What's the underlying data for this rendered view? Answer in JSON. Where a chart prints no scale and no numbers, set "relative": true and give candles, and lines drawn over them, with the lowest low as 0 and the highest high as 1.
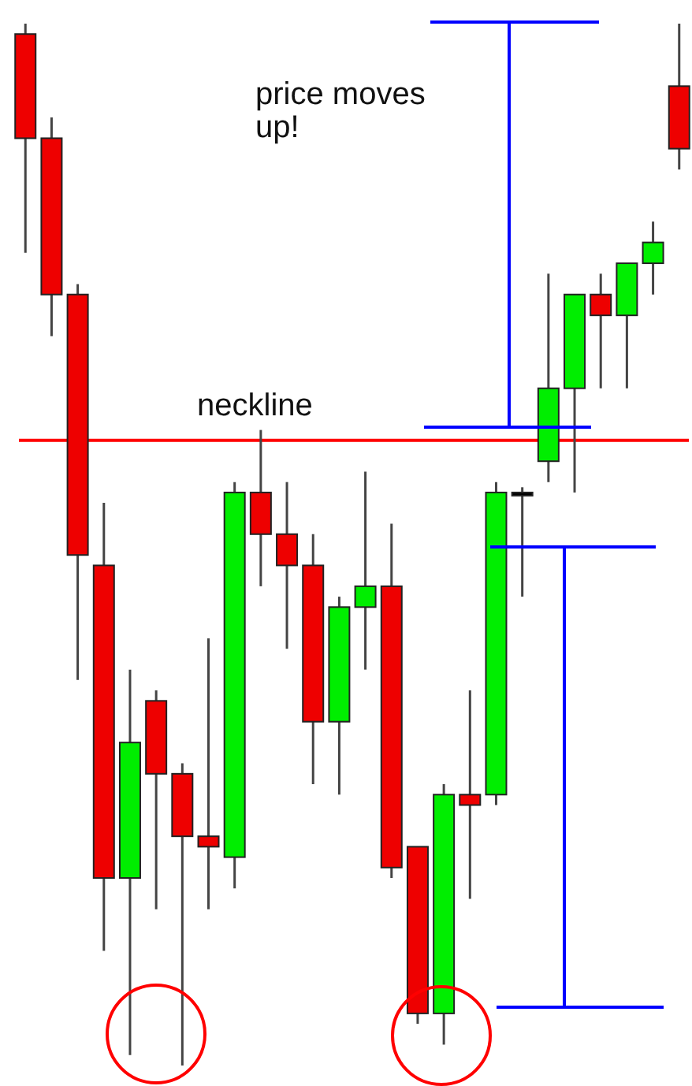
{
  "chart_data": {
    "type": "candlestick",
    "relative": true,
    "categories": [
      null,
      null,
      null,
      null,
      null,
      null,
      null,
      null,
      null,
      null,
      null,
      null,
      null,
      null,
      null,
      null,
      null,
      null,
      null,
      null,
      null,
      null,
      null,
      null,
      null,
      null
    ],
    "ohlc": [
      [
        0.99,
        1.0,
        0.78,
        0.89
      ],
      [
        0.89,
        0.91,
        0.7,
        0.74
      ],
      [
        0.74,
        0.75,
        0.37,
        0.49
      ],
      [
        0.48,
        0.54,
        0.11,
        0.18
      ],
      [
        0.18,
        0.38,
        0.01,
        0.31
      ],
      [
        0.35,
        0.36,
        0.15,
        0.28
      ],
      [
        0.28,
        0.29,
        0,
        0.22
      ],
      [
        0.22,
        0.41,
        0.15,
        0.21
      ],
      [
        0.2,
        0.56,
        0.17,
        0.55
      ],
      [
        0.55,
        0.61,
        0.46,
        0.51
      ],
      [
        0.51,
        0.56,
        0.4,
        0.48
      ],
      [
        0.48,
        0.51,
        0.27,
        0.33
      ],
      [
        0.33,
        0.45,
        0.26,
        0.44
      ],
      [
        0.44,
        0.57,
        0.38,
        0.46
      ],
      [
        0.46,
        0.52,
        0.18,
        0.19
      ],
      [
        0.21,
        0.21,
        0.04,
        0.05
      ],
      [
        0.05,
        0.27,
        0.02,
        0.26
      ],
      [
        0.26,
        0.36,
        0.16,
        0.25
      ],
      [
        0.26,
        0.56,
        0.25,
        0.55
      ],
      [
        0.55,
        0.555,
        0.45,
        0.55
      ],
      [
        0.58,
        0.76,
        0.56,
        0.65
      ],
      [
        0.65,
        0.74,
        0.55,
        0.74
      ],
      [
        0.74,
        0.76,
        0.65,
        0.72
      ],
      [
        0.72,
        0.77,
        0.65,
        0.77
      ],
      [
        0.77,
        0.81,
        0.74,
        0.79
      ],
      [
        0.94,
        1.0,
        0.86,
        0.88
      ]
    ],
    "ref_lines": [
      {
        "axis": "y",
        "value": 0.6,
        "label": "neckline",
        "color": "#ff0000"
      }
    ],
    "annotations": [
      "price moves up!"
    ]
  }
}
